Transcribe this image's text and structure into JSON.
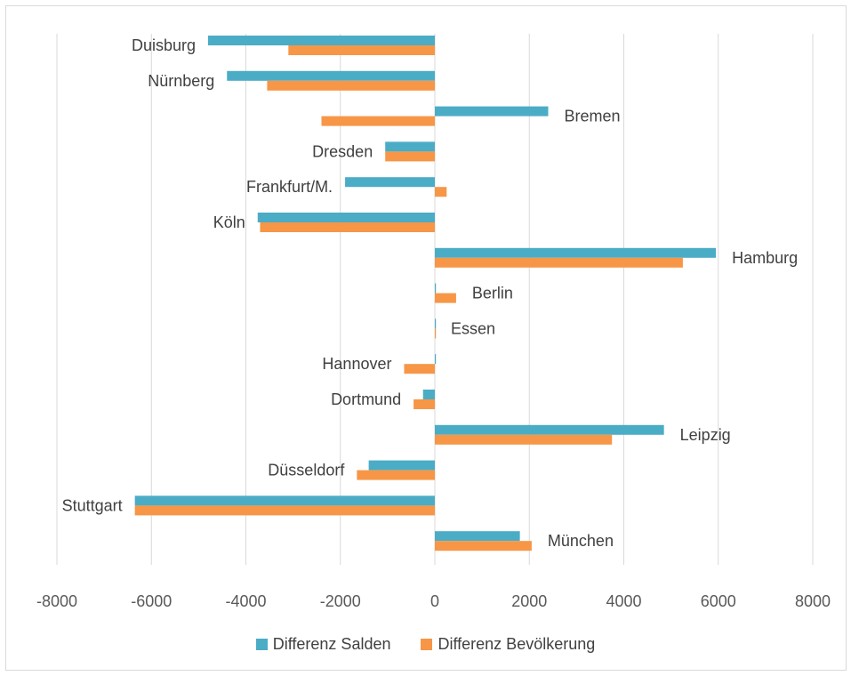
{
  "chart_data": {
    "type": "bar",
    "orientation": "horizontal",
    "categories": [
      "Duisburg",
      "Nürnberg",
      "Bremen",
      "Dresden",
      "Frankfurt/M.",
      "Köln",
      "Hamburg",
      "Berlin",
      "Essen",
      "Hannover",
      "Dortmund",
      "Leipzig",
      "Düsseldorf",
      "Stuttgart",
      "München"
    ],
    "series": [
      {
        "name": "Differenz Salden",
        "color": "#4bacc6",
        "values": [
          -4800,
          -4400,
          2400,
          -1050,
          -1900,
          -3750,
          5950,
          0,
          0,
          0,
          -250,
          4850,
          -1400,
          -6350,
          1800
        ]
      },
      {
        "name": "Differenz Bevölkerung",
        "color": "#f79646",
        "values": [
          -3100,
          -3550,
          -2400,
          -1050,
          250,
          -3700,
          5250,
          450,
          0,
          -650,
          -450,
          3750,
          -1650,
          -6350,
          2050
        ]
      }
    ],
    "xlim": [
      -8000,
      8000
    ],
    "xticks": [
      -8000,
      -6000,
      -4000,
      -2000,
      0,
      2000,
      4000,
      6000,
      8000
    ],
    "grid": true,
    "legend_position": "bottom",
    "title": "",
    "xlabel": "",
    "ylabel": ""
  }
}
